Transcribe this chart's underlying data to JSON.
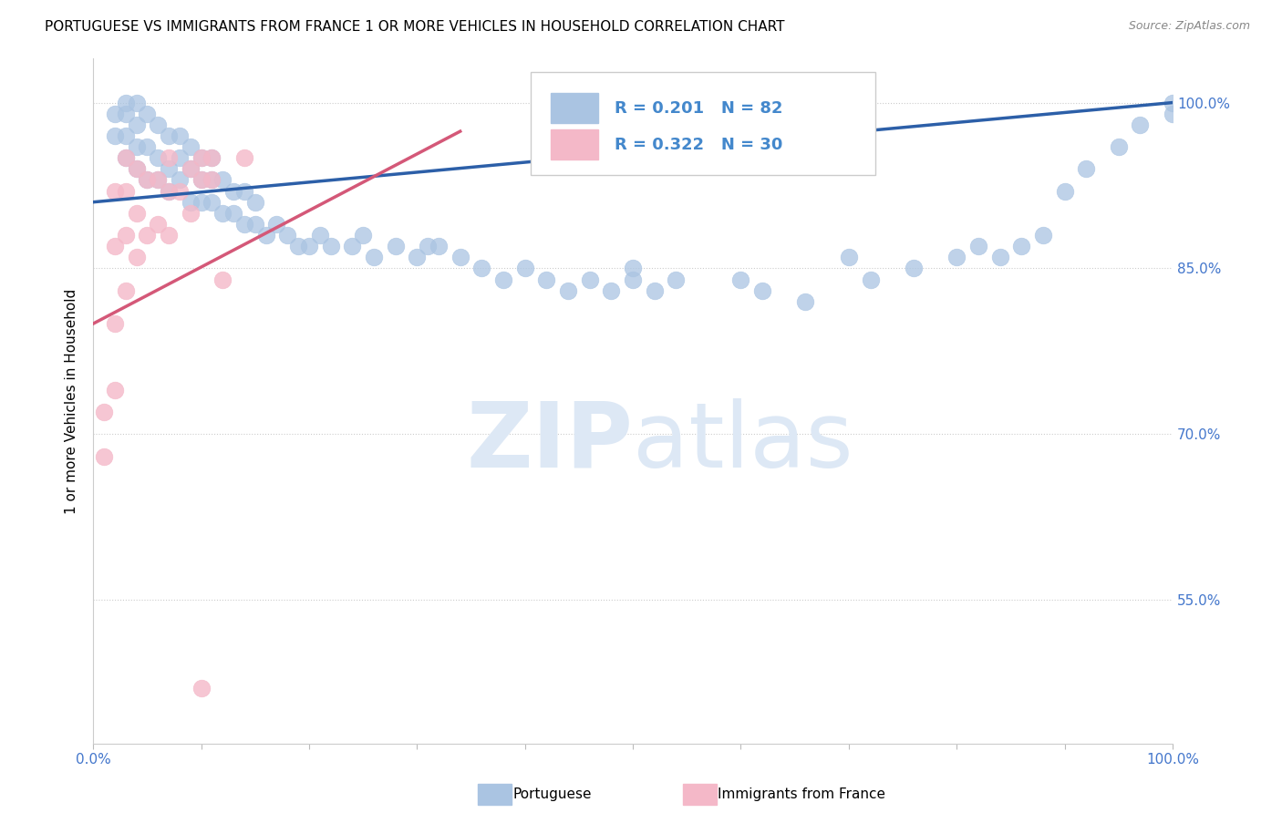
{
  "title": "PORTUGUESE VS IMMIGRANTS FROM FRANCE 1 OR MORE VEHICLES IN HOUSEHOLD CORRELATION CHART",
  "source": "Source: ZipAtlas.com",
  "ylabel": "1 or more Vehicles in Household",
  "xlim": [
    0.0,
    1.0
  ],
  "ylim": [
    0.42,
    1.04
  ],
  "yticks": [
    0.55,
    0.7,
    0.85,
    1.0
  ],
  "ytick_labels": [
    "55.0%",
    "70.0%",
    "85.0%",
    "100.0%"
  ],
  "blue_R": 0.201,
  "blue_N": 82,
  "pink_R": 0.322,
  "pink_N": 30,
  "blue_color": "#aac4e2",
  "blue_line_color": "#2c5fa8",
  "pink_color": "#f4b8c8",
  "pink_line_color": "#d45878",
  "legend_color": "#4488cc",
  "watermark_color": "#dde8f5",
  "blue_line_y_start": 0.91,
  "blue_line_y_end": 1.0,
  "pink_line_x_end": 0.34,
  "pink_line_y_start": 0.8,
  "pink_line_y_end": 0.974,
  "blue_scatter_x": [
    0.02,
    0.02,
    0.03,
    0.03,
    0.03,
    0.03,
    0.04,
    0.04,
    0.04,
    0.04,
    0.05,
    0.05,
    0.05,
    0.06,
    0.06,
    0.06,
    0.07,
    0.07,
    0.07,
    0.08,
    0.08,
    0.08,
    0.09,
    0.09,
    0.09,
    0.1,
    0.1,
    0.1,
    0.11,
    0.11,
    0.11,
    0.12,
    0.12,
    0.13,
    0.13,
    0.14,
    0.14,
    0.15,
    0.15,
    0.16,
    0.17,
    0.18,
    0.19,
    0.2,
    0.21,
    0.22,
    0.24,
    0.25,
    0.26,
    0.28,
    0.3,
    0.31,
    0.32,
    0.34,
    0.36,
    0.38,
    0.4,
    0.42,
    0.44,
    0.46,
    0.48,
    0.5,
    0.5,
    0.52,
    0.54,
    0.6,
    0.62,
    0.66,
    0.7,
    0.72,
    0.76,
    0.8,
    0.82,
    0.84,
    0.86,
    0.88,
    0.9,
    0.92,
    0.95,
    0.97,
    1.0,
    1.0
  ],
  "blue_scatter_y": [
    0.97,
    0.99,
    0.95,
    0.97,
    0.99,
    1.0,
    0.94,
    0.96,
    0.98,
    1.0,
    0.93,
    0.96,
    0.99,
    0.93,
    0.95,
    0.98,
    0.92,
    0.94,
    0.97,
    0.93,
    0.95,
    0.97,
    0.91,
    0.94,
    0.96,
    0.91,
    0.93,
    0.95,
    0.91,
    0.93,
    0.95,
    0.9,
    0.93,
    0.9,
    0.92,
    0.89,
    0.92,
    0.89,
    0.91,
    0.88,
    0.89,
    0.88,
    0.87,
    0.87,
    0.88,
    0.87,
    0.87,
    0.88,
    0.86,
    0.87,
    0.86,
    0.87,
    0.87,
    0.86,
    0.85,
    0.84,
    0.85,
    0.84,
    0.83,
    0.84,
    0.83,
    0.84,
    0.85,
    0.83,
    0.84,
    0.84,
    0.83,
    0.82,
    0.86,
    0.84,
    0.85,
    0.86,
    0.87,
    0.86,
    0.87,
    0.88,
    0.92,
    0.94,
    0.96,
    0.98,
    0.99,
    1.0
  ],
  "pink_scatter_x": [
    0.01,
    0.01,
    0.02,
    0.02,
    0.02,
    0.02,
    0.03,
    0.03,
    0.03,
    0.03,
    0.04,
    0.04,
    0.04,
    0.05,
    0.05,
    0.06,
    0.06,
    0.07,
    0.07,
    0.07,
    0.08,
    0.09,
    0.09,
    0.1,
    0.1,
    0.11,
    0.11,
    0.12,
    0.14,
    0.1
  ],
  "pink_scatter_y": [
    0.68,
    0.72,
    0.74,
    0.8,
    0.87,
    0.92,
    0.83,
    0.88,
    0.92,
    0.95,
    0.86,
    0.9,
    0.94,
    0.88,
    0.93,
    0.89,
    0.93,
    0.88,
    0.92,
    0.95,
    0.92,
    0.9,
    0.94,
    0.93,
    0.95,
    0.93,
    0.95,
    0.84,
    0.95,
    0.47
  ]
}
